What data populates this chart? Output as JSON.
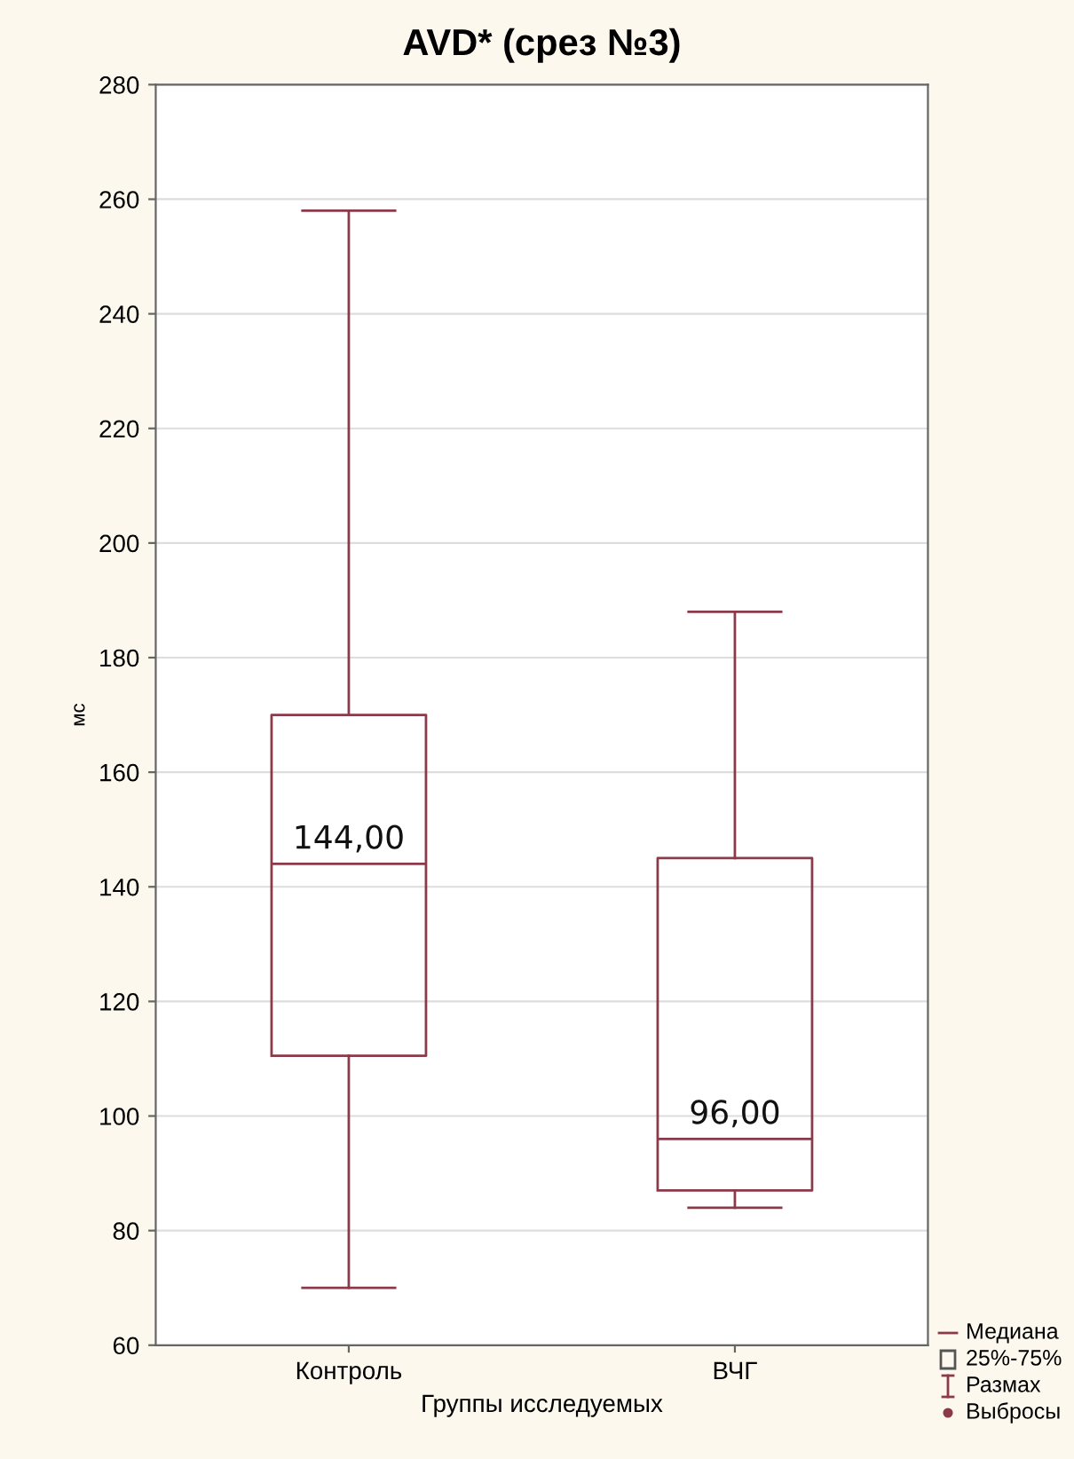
{
  "chart_data": {
    "type": "box",
    "title": "AVD* (срез №3)",
    "xlabel": "Группы исследуемых",
    "ylabel": "мс",
    "categories": [
      "Контроль",
      "ВЧГ"
    ],
    "boxes": [
      {
        "low": 70,
        "q1": 110.5,
        "median": 144,
        "q3": 170,
        "high": 258
      },
      {
        "low": 84,
        "q1": 87,
        "median": 96,
        "q3": 145,
        "high": 188
      }
    ],
    "value_labels": [
      "144,00",
      "96,00"
    ],
    "color": "#8b3a4a",
    "ylim": [
      60,
      280
    ],
    "yticks": [
      60,
      80,
      100,
      120,
      140,
      160,
      180,
      200,
      220,
      240,
      260,
      280
    ],
    "grid": "y",
    "annotations": [
      "Медиана",
      "25%-75%",
      "Размах",
      "Выбросы"
    ]
  }
}
